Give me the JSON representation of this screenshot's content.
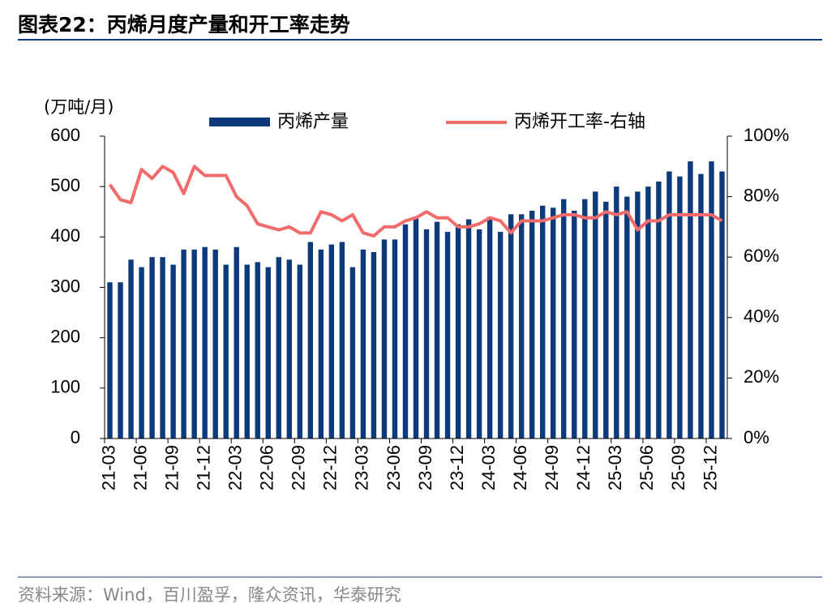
{
  "chart_data": {
    "type": "bar-line",
    "title": "图表22：丙烯月度产量和开工率走势",
    "y_label": "(万吨/月)",
    "source": "资料来源：Wind，百川盈孚，隆众资讯，华泰研究",
    "categories": [
      "21-03",
      null,
      null,
      "21-06",
      null,
      null,
      "21-09",
      null,
      null,
      "21-12",
      null,
      null,
      "22-03",
      null,
      null,
      "22-06",
      null,
      null,
      "22-09",
      null,
      null,
      "22-12",
      null,
      null,
      "23-03",
      null,
      null,
      "23-06",
      null,
      null,
      "23-09",
      null,
      null,
      "23-12",
      null,
      null,
      "24-03",
      null,
      null,
      "24-06",
      null,
      null,
      "24-09",
      null,
      null,
      "24-12",
      null,
      null,
      "25-03",
      null,
      null,
      "25-06",
      null,
      null,
      "25-09",
      null,
      null,
      "25-12",
      null
    ],
    "series": [
      {
        "name": "丙烯产量",
        "type": "bar",
        "color": "#0d3a7a",
        "values": [
          310,
          310,
          355,
          340,
          360,
          360,
          345,
          375,
          375,
          380,
          375,
          345,
          380,
          345,
          350,
          340,
          360,
          355,
          345,
          390,
          375,
          385,
          390,
          340,
          375,
          370,
          395,
          395,
          425,
          440,
          415,
          430,
          410,
          425,
          435,
          415,
          440,
          410,
          445,
          445,
          452,
          462,
          458,
          475,
          452,
          475,
          490,
          470,
          500,
          480,
          490,
          500,
          510,
          530,
          520,
          550,
          525,
          550,
          530
        ]
      },
      {
        "name": "丙烯开工率-右轴",
        "type": "line",
        "axis": "y2",
        "color": "#f26b6b",
        "values": [
          84,
          79,
          78,
          89,
          86,
          90,
          88,
          81,
          90,
          87,
          87,
          87,
          80,
          77,
          71,
          70,
          69,
          70,
          68,
          68,
          75,
          74,
          72,
          74,
          68,
          67,
          70,
          70,
          72,
          73,
          75,
          73,
          73,
          70,
          70,
          71,
          73,
          72,
          68,
          72,
          72,
          72,
          73,
          74,
          74,
          73,
          73,
          75,
          74,
          75,
          69,
          72,
          72,
          74,
          74,
          74,
          74,
          74,
          72
        ]
      }
    ],
    "ylim": [
      0,
      600
    ],
    "yticks": [
      0,
      100,
      200,
      300,
      400,
      500,
      600
    ],
    "y2lim": [
      0,
      100
    ],
    "y2ticks": [
      {
        "value": 0,
        "label": "0%"
      },
      {
        "value": 20,
        "label": "20%"
      },
      {
        "value": 40,
        "label": "40%"
      },
      {
        "value": 60,
        "label": "60%"
      },
      {
        "value": 80,
        "label": "80%"
      },
      {
        "value": 100,
        "label": "100%"
      }
    ]
  }
}
